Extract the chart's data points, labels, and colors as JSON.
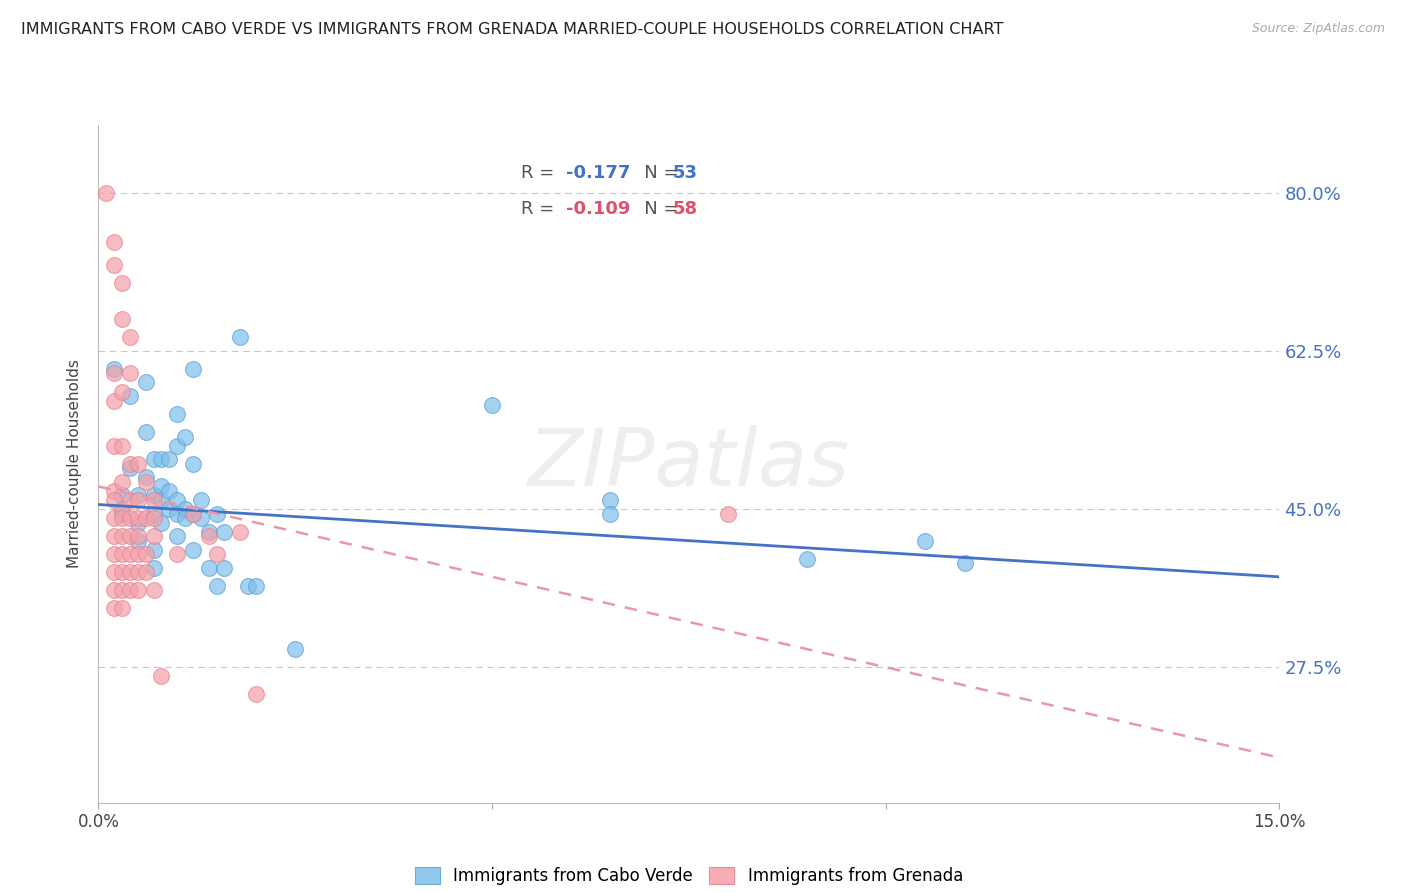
{
  "title": "IMMIGRANTS FROM CABO VERDE VS IMMIGRANTS FROM GRENADA MARRIED-COUPLE HOUSEHOLDS CORRELATION CHART",
  "source": "Source: ZipAtlas.com",
  "ylabel": "Married-couple Households",
  "xlim": [
    0.0,
    0.15
  ],
  "ylim": [
    0.125,
    0.875
  ],
  "yticks": [
    0.275,
    0.45,
    0.625,
    0.8
  ],
  "ytick_labels": [
    "27.5%",
    "45.0%",
    "62.5%",
    "80.0%"
  ],
  "xticks": [
    0.0,
    0.05,
    0.1,
    0.15
  ],
  "xtick_labels": [
    "0.0%",
    "",
    "",
    "15.0%"
  ],
  "cabo_verde_color": "#7fbfea",
  "grenada_color": "#f4a0a8",
  "cabo_verde_line_color": "#4472c4",
  "grenada_line_color": "#f4a0b8",
  "cabo_verde_R": "-0.177",
  "cabo_verde_N": "53",
  "grenada_R": "-0.109",
  "grenada_N": "58",
  "background_color": "#ffffff",
  "grid_color": "#c8c8c8",
  "watermark": "ZIPatlas",
  "right_ytick_color": "#4472c4",
  "cv_line_x0": 0.0,
  "cv_line_y0": 0.455,
  "cv_line_x1": 0.15,
  "cv_line_y1": 0.375,
  "gr_line_x0": 0.0,
  "gr_line_y0": 0.475,
  "gr_line_x1": 0.15,
  "gr_line_y1": 0.175,
  "cabo_verde_scatter": [
    [
      0.002,
      0.605
    ],
    [
      0.004,
      0.575
    ],
    [
      0.004,
      0.495
    ],
    [
      0.005,
      0.465
    ],
    [
      0.005,
      0.435
    ],
    [
      0.005,
      0.415
    ],
    [
      0.006,
      0.59
    ],
    [
      0.006,
      0.535
    ],
    [
      0.006,
      0.485
    ],
    [
      0.007,
      0.505
    ],
    [
      0.007,
      0.465
    ],
    [
      0.007,
      0.445
    ],
    [
      0.007,
      0.405
    ],
    [
      0.007,
      0.385
    ],
    [
      0.008,
      0.505
    ],
    [
      0.008,
      0.475
    ],
    [
      0.008,
      0.46
    ],
    [
      0.009,
      0.505
    ],
    [
      0.009,
      0.47
    ],
    [
      0.009,
      0.45
    ],
    [
      0.01,
      0.555
    ],
    [
      0.01,
      0.52
    ],
    [
      0.01,
      0.46
    ],
    [
      0.01,
      0.445
    ],
    [
      0.01,
      0.42
    ],
    [
      0.011,
      0.53
    ],
    [
      0.011,
      0.45
    ],
    [
      0.011,
      0.44
    ],
    [
      0.012,
      0.605
    ],
    [
      0.012,
      0.5
    ],
    [
      0.012,
      0.445
    ],
    [
      0.012,
      0.405
    ],
    [
      0.013,
      0.46
    ],
    [
      0.013,
      0.44
    ],
    [
      0.014,
      0.425
    ],
    [
      0.014,
      0.385
    ],
    [
      0.015,
      0.445
    ],
    [
      0.015,
      0.365
    ],
    [
      0.016,
      0.425
    ],
    [
      0.016,
      0.385
    ],
    [
      0.018,
      0.64
    ],
    [
      0.019,
      0.365
    ],
    [
      0.02,
      0.365
    ],
    [
      0.025,
      0.295
    ],
    [
      0.05,
      0.565
    ],
    [
      0.065,
      0.46
    ],
    [
      0.065,
      0.445
    ],
    [
      0.09,
      0.395
    ],
    [
      0.105,
      0.415
    ],
    [
      0.11,
      0.39
    ],
    [
      0.003,
      0.445
    ],
    [
      0.003,
      0.465
    ],
    [
      0.008,
      0.435
    ]
  ],
  "grenada_scatter": [
    [
      0.001,
      0.8
    ],
    [
      0.002,
      0.745
    ],
    [
      0.002,
      0.72
    ],
    [
      0.002,
      0.6
    ],
    [
      0.002,
      0.57
    ],
    [
      0.002,
      0.52
    ],
    [
      0.002,
      0.47
    ],
    [
      0.002,
      0.46
    ],
    [
      0.002,
      0.44
    ],
    [
      0.002,
      0.42
    ],
    [
      0.002,
      0.4
    ],
    [
      0.002,
      0.38
    ],
    [
      0.002,
      0.36
    ],
    [
      0.002,
      0.34
    ],
    [
      0.003,
      0.7
    ],
    [
      0.003,
      0.66
    ],
    [
      0.003,
      0.58
    ],
    [
      0.003,
      0.52
    ],
    [
      0.003,
      0.48
    ],
    [
      0.003,
      0.45
    ],
    [
      0.003,
      0.44
    ],
    [
      0.003,
      0.42
    ],
    [
      0.003,
      0.4
    ],
    [
      0.003,
      0.38
    ],
    [
      0.003,
      0.36
    ],
    [
      0.003,
      0.34
    ],
    [
      0.004,
      0.64
    ],
    [
      0.004,
      0.6
    ],
    [
      0.004,
      0.5
    ],
    [
      0.004,
      0.46
    ],
    [
      0.004,
      0.44
    ],
    [
      0.004,
      0.42
    ],
    [
      0.004,
      0.4
    ],
    [
      0.004,
      0.38
    ],
    [
      0.004,
      0.36
    ],
    [
      0.005,
      0.5
    ],
    [
      0.005,
      0.46
    ],
    [
      0.005,
      0.44
    ],
    [
      0.005,
      0.42
    ],
    [
      0.005,
      0.4
    ],
    [
      0.005,
      0.38
    ],
    [
      0.005,
      0.36
    ],
    [
      0.006,
      0.48
    ],
    [
      0.006,
      0.44
    ],
    [
      0.006,
      0.4
    ],
    [
      0.006,
      0.38
    ],
    [
      0.007,
      0.46
    ],
    [
      0.007,
      0.44
    ],
    [
      0.007,
      0.42
    ],
    [
      0.007,
      0.36
    ],
    [
      0.008,
      0.265
    ],
    [
      0.01,
      0.4
    ],
    [
      0.012,
      0.445
    ],
    [
      0.014,
      0.42
    ],
    [
      0.015,
      0.4
    ],
    [
      0.018,
      0.425
    ],
    [
      0.02,
      0.245
    ],
    [
      0.08,
      0.445
    ]
  ]
}
